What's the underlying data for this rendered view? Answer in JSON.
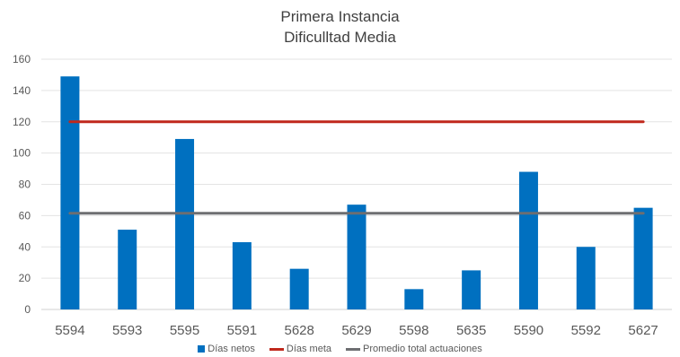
{
  "chart_data": {
    "type": "bar",
    "title": "Primera Instancia",
    "subtitle": "Dificulltad Media",
    "categories": [
      "5594",
      "5593",
      "5595",
      "5591",
      "5628",
      "5629",
      "5598",
      "5635",
      "5590",
      "5592",
      "5627"
    ],
    "series": [
      {
        "name": "Días netos",
        "type": "bar",
        "color": "#0070C0",
        "values": [
          149,
          51,
          109,
          43,
          26,
          67,
          13,
          25,
          88,
          40,
          65
        ]
      },
      {
        "name": "Días meta",
        "type": "line",
        "color": "#C0281C",
        "values": [
          120,
          120,
          120,
          120,
          120,
          120,
          120,
          120,
          120,
          120,
          120
        ]
      },
      {
        "name": "Promedio total actuaciones",
        "type": "line",
        "color": "#6D6E71",
        "values": [
          61.5,
          61.5,
          61.5,
          61.5,
          61.5,
          61.5,
          61.5,
          61.5,
          61.5,
          61.5,
          61.5
        ]
      }
    ],
    "ylim": [
      0,
      160
    ],
    "yticks": [
      0,
      20,
      40,
      60,
      80,
      100,
      120,
      140,
      160
    ],
    "grid": true,
    "legend_position": "bottom"
  }
}
